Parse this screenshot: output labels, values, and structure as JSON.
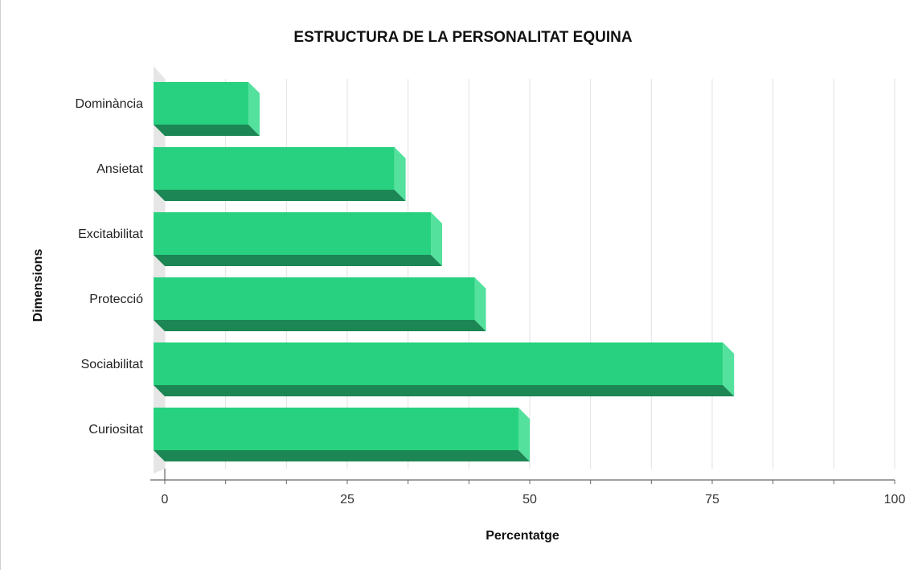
{
  "chart_data": {
    "type": "bar",
    "orientation": "horizontal",
    "title": "ESTRUCTURA DE LA PERSONALITAT EQUINA",
    "xlabel": "Percentatge",
    "ylabel": "Dimensions",
    "categories": [
      "Dominància",
      "Ansietat",
      "Excitabilitat",
      "Protecció",
      "Sociabilitat",
      "Curiositat"
    ],
    "values": [
      13,
      33,
      38,
      44,
      78,
      50
    ],
    "xlim": [
      0,
      100
    ],
    "x_ticks": [
      0,
      25,
      50,
      75,
      100
    ],
    "grid": true,
    "legend": "none",
    "colors": {
      "bar_front": "#28d17f",
      "bar_side": "#53e19d",
      "bar_bottom": "#1c8654",
      "grid": "#e2e2e2",
      "axis": "#666666",
      "wall": "#e6e6e6"
    }
  }
}
